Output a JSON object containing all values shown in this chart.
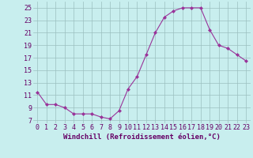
{
  "x": [
    0,
    1,
    2,
    3,
    4,
    5,
    6,
    7,
    8,
    9,
    10,
    11,
    12,
    13,
    14,
    15,
    16,
    17,
    18,
    19,
    20,
    21,
    22,
    23
  ],
  "y": [
    11.5,
    9.5,
    9.5,
    9.0,
    8.0,
    8.0,
    8.0,
    7.5,
    7.2,
    8.5,
    12.0,
    14.0,
    17.5,
    21.0,
    23.5,
    24.5,
    25.0,
    25.0,
    25.0,
    21.5,
    19.0,
    18.5,
    17.5,
    16.5
  ],
  "bg_color": "#c8eeee",
  "grid_color": "#9bbfbf",
  "line_color": "#993399",
  "marker_color": "#993399",
  "xlabel": "Windchill (Refroidissement éolien,°C)",
  "xlim": [
    -0.5,
    23.5
  ],
  "ylim": [
    6.5,
    26.0
  ],
  "yticks": [
    7,
    9,
    11,
    13,
    15,
    17,
    19,
    21,
    23,
    25
  ],
  "xticks": [
    0,
    1,
    2,
    3,
    4,
    5,
    6,
    7,
    8,
    9,
    10,
    11,
    12,
    13,
    14,
    15,
    16,
    17,
    18,
    19,
    20,
    21,
    22,
    23
  ],
  "font_color": "#660066",
  "label_fontsize": 6.5,
  "tick_fontsize": 6.0
}
